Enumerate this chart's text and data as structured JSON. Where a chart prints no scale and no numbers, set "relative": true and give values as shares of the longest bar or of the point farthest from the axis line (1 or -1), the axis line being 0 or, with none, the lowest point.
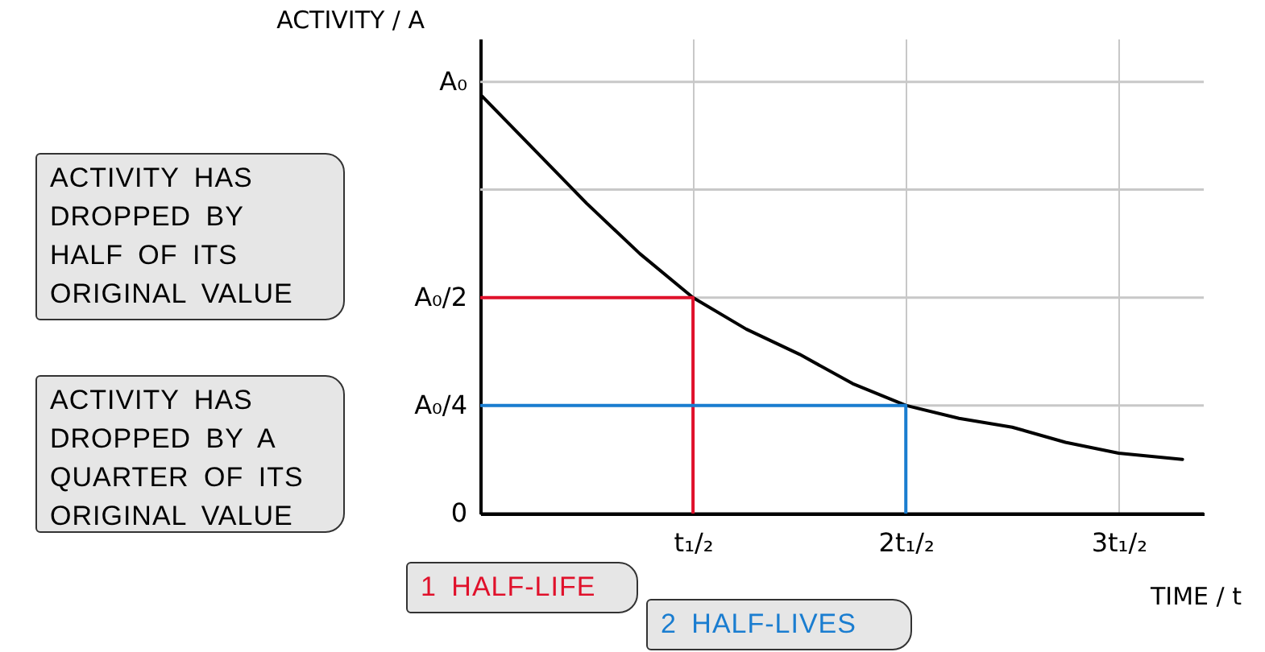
{
  "chart_data": {
    "type": "line",
    "relative": true,
    "xlabel": "TIME / t",
    "ylabel": "ACTIVITY / A",
    "xlim": [
      0,
      3.4
    ],
    "xticks": [
      {
        "value": 0,
        "label": null
      },
      {
        "value": 1,
        "label": "t₁/₂"
      },
      {
        "value": 2,
        "label": "2t₁/₂"
      },
      {
        "value": 3,
        "label": "3t₁/₂"
      }
    ],
    "grid": "x",
    "series": [
      {
        "color": "#000000",
        "x": [
          0,
          0.25,
          0.5,
          0.75,
          1,
          1.25,
          1.5,
          1.75,
          2,
          2.25,
          2.5,
          2.75,
          3,
          3.3
        ],
        "values": [
          1,
          0.87,
          0.74,
          0.62,
          0.515,
          0.44,
          0.38,
          0.31,
          0.258,
          0.227,
          0.206,
          0.17,
          0.144,
          0.129
        ]
      },
      {
        "color": "#e0112b",
        "x": [
          0,
          1,
          1
        ],
        "values": [
          0.515,
          0.515,
          0
        ]
      },
      {
        "color": "#1a7dd0",
        "x": [
          0,
          2,
          2
        ],
        "values": [
          0.258,
          0.258,
          0
        ]
      }
    ],
    "ref_lines": [
      {
        "axis": "y",
        "value": 0,
        "label": "0",
        "color": "#000000"
      },
      {
        "axis": "y",
        "value": 0.258,
        "label": "A₀/4",
        "color": "#c8c8c8"
      },
      {
        "axis": "y",
        "value": 0.515,
        "label": "A₀/2",
        "color": "#c8c8c8"
      },
      {
        "axis": "y",
        "value": 0.773,
        "label": null,
        "color": "#c8c8c8"
      },
      {
        "axis": "y",
        "value": 1.03,
        "label": "A₀",
        "color": "#c8c8c8"
      }
    ],
    "annotations": [
      "ACTIVITY HAS DROPPED BY HALF OF ITS ORIGINAL VALUE",
      "ACTIVITY HAS DROPPED BY A QUARTER OF ITS ORIGINAL VALUE",
      "1 HALF-LIFE",
      "2 HALF-LIVES"
    ]
  }
}
